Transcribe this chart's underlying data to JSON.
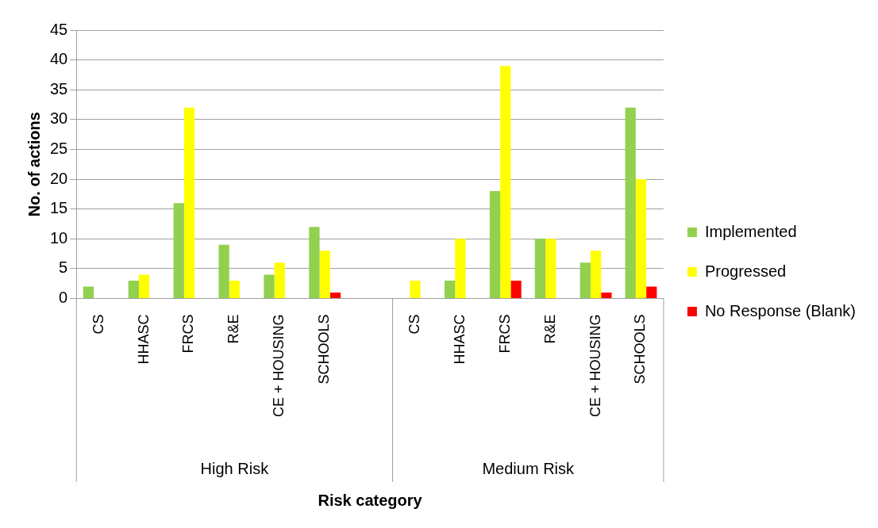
{
  "chart_data": {
    "type": "bar",
    "xlabel": "Risk category",
    "ylabel": "No. of actions",
    "categories": [
      "CS",
      "HHASC",
      "FRCS",
      "R&E",
      "CE + HOUSING",
      "SCHOOLS",
      null,
      "CS",
      "HHASC",
      "FRCS",
      "R&E",
      "CE + HOUSING",
      "SCHOOLS"
    ],
    "series": [
      {
        "name": "Implemented",
        "color": "#92d050",
        "values": [
          2,
          3,
          16,
          9,
          4,
          12,
          null,
          null,
          3,
          18,
          10,
          6,
          32
        ]
      },
      {
        "name": "Progressed",
        "color": "#ffff00",
        "values": [
          null,
          4,
          32,
          3,
          6,
          8,
          null,
          3,
          10,
          39,
          10,
          8,
          20
        ]
      },
      {
        "name": "No Response (Blank)",
        "color": "#ff0000",
        "values": [
          null,
          null,
          null,
          null,
          null,
          1,
          null,
          null,
          null,
          3,
          null,
          1,
          2
        ]
      }
    ],
    "annotations": [
      "High Risk",
      "Medium Risk"
    ],
    "ylim": [
      0,
      45
    ],
    "yticks": [
      0,
      5,
      10,
      15,
      20,
      25,
      30,
      35,
      40,
      45
    ],
    "grid": "y",
    "legend": "right"
  }
}
